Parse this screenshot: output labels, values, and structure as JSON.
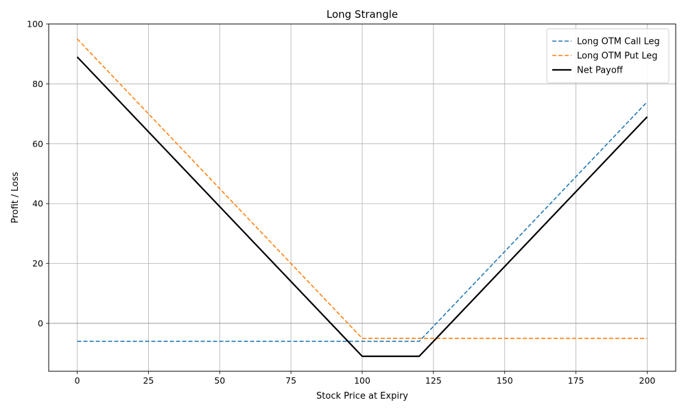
{
  "chart_data": {
    "type": "line",
    "title": "Long Strangle",
    "xlabel": "Stock Price at Expiry",
    "ylabel": "Profit / Loss",
    "xlim": [
      -10,
      210
    ],
    "ylim": [
      -16,
      100
    ],
    "xticks": [
      0,
      25,
      50,
      75,
      100,
      125,
      150,
      175,
      200
    ],
    "yticks": [
      0,
      20,
      40,
      60,
      80,
      100
    ],
    "grid": true,
    "zero_line": true,
    "legend_position": "top-right",
    "series": [
      {
        "name": "Long OTM Call Leg",
        "color": "#1f77b4",
        "style": "dashed",
        "x": [
          0,
          120,
          200
        ],
        "y": [
          -6,
          -6,
          74
        ]
      },
      {
        "name": "Long OTM Put Leg",
        "color": "#ff7f0e",
        "style": "dashed",
        "x": [
          0,
          100,
          200
        ],
        "y": [
          95,
          -5,
          -5
        ]
      },
      {
        "name": "Net Payoff",
        "color": "#000000",
        "style": "solid",
        "x": [
          0,
          100,
          120,
          200
        ],
        "y": [
          89,
          -11,
          -11,
          69
        ]
      }
    ]
  }
}
